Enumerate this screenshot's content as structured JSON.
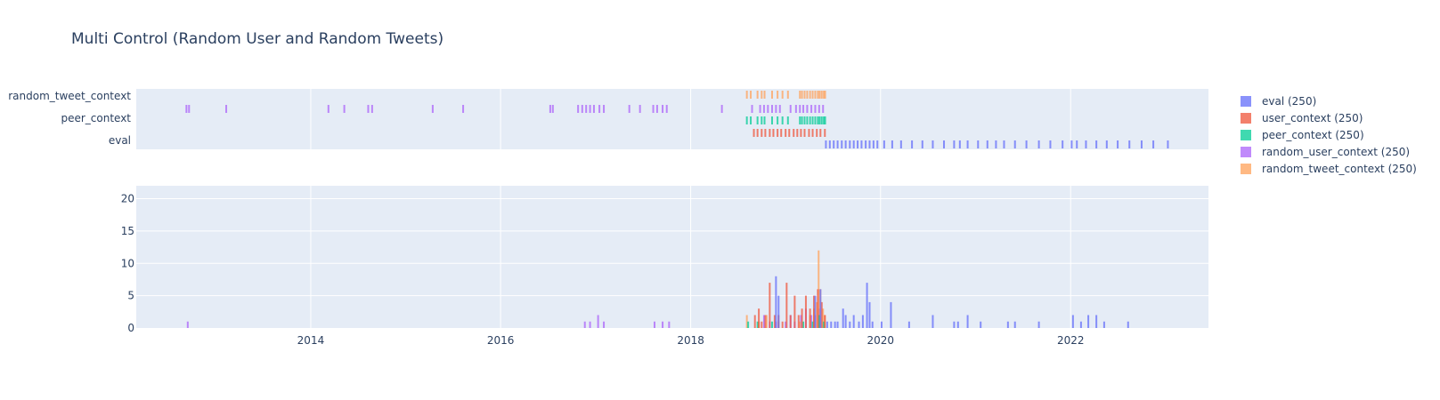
{
  "chart_data": {
    "title": "Multi Control (Random User and Random Tweets)",
    "type": "bar",
    "legend": {
      "placement": "right",
      "entries": [
        {
          "key": "eval",
          "label": "eval (250)",
          "color": "#636efa"
        },
        {
          "key": "user_context",
          "label": "user_context (250)",
          "color": "#ef553b"
        },
        {
          "key": "peer_context",
          "label": "peer_context (250)",
          "color": "#00cc96"
        },
        {
          "key": "random_user_context",
          "label": "random_user_context (250)",
          "color": "#ab63fa"
        },
        {
          "key": "random_tweet_context",
          "label": "random_tweet_context (250)",
          "color": "#ffa15a"
        }
      ]
    },
    "x_axis": {
      "type": "date",
      "range": [
        "2012-03-01",
        "2023-06-15"
      ],
      "ticks": [
        {
          "label": "2014",
          "value": "2014-01-01"
        },
        {
          "label": "2016",
          "value": "2016-01-01"
        },
        {
          "label": "2018",
          "value": "2018-01-01"
        },
        {
          "label": "2020",
          "value": "2020-01-01"
        },
        {
          "label": "2022",
          "value": "2022-01-01"
        }
      ]
    },
    "strip_plot": {
      "type": "strip",
      "y_categories": [
        "eval",
        "peer_context",
        "random_tweet_context"
      ],
      "rows": [
        {
          "series": "random_tweet_context",
          "dates": [
            "2018-08-05",
            "2018-08-20",
            "2018-09-15",
            "2018-10-01",
            "2018-10-12",
            "2018-11-10",
            "2018-12-01",
            "2018-12-20",
            "2019-01-10",
            "2019-02-25",
            "2019-03-05",
            "2019-03-15",
            "2019-03-25",
            "2019-04-05",
            "2019-04-15",
            "2019-04-25",
            "2019-05-05",
            "2019-05-12",
            "2019-05-20",
            "2019-05-28",
            "2019-06-02"
          ]
        },
        {
          "series": "random_user_context",
          "dates": [
            "2012-09-10",
            "2012-09-20",
            "2013-02-10",
            "2014-03-10",
            "2014-05-10",
            "2014-08-10",
            "2014-08-25",
            "2015-04-15",
            "2015-08-10",
            "2016-07-10",
            "2016-07-20",
            "2016-10-25",
            "2016-11-10",
            "2016-11-25",
            "2016-12-10",
            "2016-12-25",
            "2017-01-15",
            "2017-02-01",
            "2017-05-10",
            "2017-06-20",
            "2017-08-10",
            "2017-08-25",
            "2017-09-15",
            "2017-10-01",
            "2018-05-01",
            "2018-08-25",
            "2018-09-25",
            "2018-10-10",
            "2018-10-25",
            "2018-11-10",
            "2018-11-25",
            "2018-12-10",
            "2019-01-20",
            "2019-02-10",
            "2019-02-25",
            "2019-03-10",
            "2019-03-25",
            "2019-04-10",
            "2019-04-25",
            "2019-05-10",
            "2019-05-25"
          ]
        },
        {
          "series": "peer_context",
          "dates": [
            "2018-08-05",
            "2018-08-20",
            "2018-09-15",
            "2018-10-01",
            "2018-10-12",
            "2018-11-10",
            "2018-12-01",
            "2018-12-20",
            "2019-01-10",
            "2019-02-25",
            "2019-03-05",
            "2019-03-15",
            "2019-03-25",
            "2019-04-05",
            "2019-04-15",
            "2019-04-25",
            "2019-05-05",
            "2019-05-12",
            "2019-05-20",
            "2019-05-28",
            "2019-06-02"
          ]
        },
        {
          "series": "user_context",
          "dates": [
            "2018-09-01",
            "2018-09-15",
            "2018-10-01",
            "2018-10-15",
            "2018-11-01",
            "2018-11-15",
            "2018-12-01",
            "2018-12-15",
            "2019-01-01",
            "2019-01-15",
            "2019-02-01",
            "2019-02-15",
            "2019-03-01",
            "2019-03-15",
            "2019-04-01",
            "2019-04-15",
            "2019-05-01",
            "2019-05-15",
            "2019-06-01"
          ]
        },
        {
          "series": "eval",
          "dates": [
            "2019-06-05",
            "2019-06-20",
            "2019-07-05",
            "2019-07-20",
            "2019-08-05",
            "2019-08-20",
            "2019-09-05",
            "2019-09-20",
            "2019-10-05",
            "2019-10-20",
            "2019-11-05",
            "2019-11-20",
            "2019-12-05",
            "2019-12-20",
            "2020-01-15",
            "2020-02-15",
            "2020-03-20",
            "2020-05-01",
            "2020-06-10",
            "2020-07-20",
            "2020-09-01",
            "2020-10-10",
            "2020-11-01",
            "2020-12-01",
            "2021-01-10",
            "2021-02-15",
            "2021-03-20",
            "2021-04-20",
            "2021-06-01",
            "2021-07-15",
            "2021-09-01",
            "2021-10-15",
            "2021-12-01",
            "2022-01-05",
            "2022-01-25",
            "2022-03-01",
            "2022-04-10",
            "2022-05-20",
            "2022-07-01",
            "2022-08-15",
            "2022-10-01",
            "2022-11-15",
            "2023-01-10"
          ]
        }
      ]
    },
    "histogram": {
      "type": "bar",
      "y_axis": {
        "range": [
          0,
          22
        ],
        "ticks": [
          0,
          5,
          10,
          15,
          20
        ]
      },
      "series": [
        {
          "name": "random_user_context",
          "points": [
            [
              "2012-09-15",
              1
            ],
            [
              "2016-11-20",
              1
            ],
            [
              "2016-12-10",
              1
            ],
            [
              "2017-01-10",
              2
            ],
            [
              "2017-02-01",
              1
            ],
            [
              "2017-08-15",
              1
            ],
            [
              "2017-09-15",
              1
            ],
            [
              "2017-10-10",
              1
            ],
            [
              "2018-10-10",
              2
            ],
            [
              "2018-11-01",
              1
            ],
            [
              "2018-11-25",
              1
            ],
            [
              "2019-01-01",
              1
            ],
            [
              "2019-01-20",
              2
            ],
            [
              "2019-02-05",
              1
            ],
            [
              "2019-03-01",
              2
            ],
            [
              "2019-03-20",
              3
            ],
            [
              "2019-04-10",
              2
            ],
            [
              "2019-04-25",
              2
            ],
            [
              "2019-05-10",
              3
            ]
          ]
        },
        {
          "name": "random_tweet_context",
          "points": [
            [
              "2018-08-05",
              2
            ],
            [
              "2018-09-20",
              1
            ],
            [
              "2018-10-20",
              2
            ],
            [
              "2018-12-05",
              1
            ],
            [
              "2019-02-25",
              1
            ],
            [
              "2019-04-05",
              2
            ],
            [
              "2019-04-20",
              3
            ],
            [
              "2019-05-01",
              4
            ],
            [
              "2019-05-08",
              12
            ],
            [
              "2019-05-15",
              6
            ],
            [
              "2019-05-25",
              3
            ],
            [
              "2019-06-01",
              2
            ]
          ]
        },
        {
          "name": "peer_context",
          "points": [
            [
              "2018-08-10",
              1
            ],
            [
              "2018-09-15",
              1
            ],
            [
              "2018-11-10",
              1
            ],
            [
              "2019-03-10",
              1
            ],
            [
              "2019-04-15",
              1
            ],
            [
              "2019-05-10",
              2
            ],
            [
              "2019-05-28",
              1
            ]
          ]
        },
        {
          "name": "user_context",
          "points": [
            [
              "2018-09-05",
              2
            ],
            [
              "2018-09-20",
              3
            ],
            [
              "2018-10-01",
              1
            ],
            [
              "2018-10-15",
              2
            ],
            [
              "2018-11-01",
              7
            ],
            [
              "2018-11-20",
              2
            ],
            [
              "2018-12-05",
              2
            ],
            [
              "2018-12-20",
              1
            ],
            [
              "2019-01-05",
              7
            ],
            [
              "2019-01-20",
              2
            ],
            [
              "2019-02-05",
              5
            ],
            [
              "2019-02-20",
              2
            ],
            [
              "2019-03-05",
              3
            ],
            [
              "2019-03-20",
              5
            ],
            [
              "2019-04-05",
              3
            ],
            [
              "2019-04-20",
              5
            ],
            [
              "2019-05-05",
              6
            ],
            [
              "2019-05-20",
              4
            ],
            [
              "2019-06-01",
              2
            ]
          ]
        },
        {
          "name": "eval",
          "points": [
            [
              "2018-11-25",
              8
            ],
            [
              "2018-12-05",
              5
            ],
            [
              "2019-04-25",
              5
            ],
            [
              "2019-05-15",
              6
            ],
            [
              "2019-06-10",
              1
            ],
            [
              "2019-06-25",
              1
            ],
            [
              "2019-07-10",
              1
            ],
            [
              "2019-07-20",
              1
            ],
            [
              "2019-08-10",
              3
            ],
            [
              "2019-08-20",
              2
            ],
            [
              "2019-09-05",
              1
            ],
            [
              "2019-09-20",
              2
            ],
            [
              "2019-10-10",
              1
            ],
            [
              "2019-10-25",
              2
            ],
            [
              "2019-11-10",
              7
            ],
            [
              "2019-11-20",
              4
            ],
            [
              "2019-12-01",
              1
            ],
            [
              "2020-01-05",
              1
            ],
            [
              "2020-02-10",
              4
            ],
            [
              "2020-04-20",
              1
            ],
            [
              "2020-07-20",
              2
            ],
            [
              "2020-10-10",
              1
            ],
            [
              "2020-10-25",
              1
            ],
            [
              "2020-12-01",
              2
            ],
            [
              "2021-01-20",
              1
            ],
            [
              "2021-05-05",
              1
            ],
            [
              "2021-06-01",
              1
            ],
            [
              "2021-09-01",
              1
            ],
            [
              "2022-01-10",
              2
            ],
            [
              "2022-02-10",
              1
            ],
            [
              "2022-03-10",
              2
            ],
            [
              "2022-04-10",
              2
            ],
            [
              "2022-05-10",
              1
            ],
            [
              "2022-08-10",
              1
            ]
          ]
        }
      ]
    }
  }
}
